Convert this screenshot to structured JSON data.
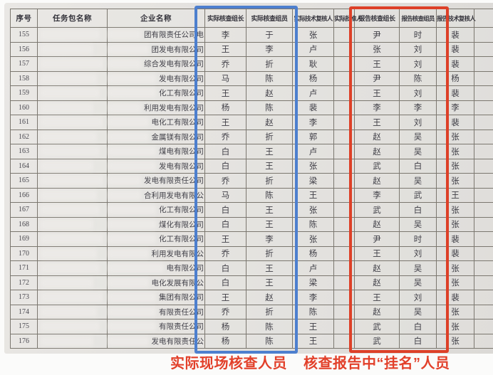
{
  "document": {
    "type": "photographed verification assignment table",
    "table": {
      "headers": [
        "序号",
        "任务包名称",
        "企业名称",
        "实际核查组长",
        "实际核查组员",
        "实际技术复核人",
        "实际批准人",
        "报告核查组长",
        "报告核查组员",
        "报告技术复核人"
      ],
      "redacted_columns": [
        "任务包名称",
        "企业名称"
      ],
      "rows": [
        {
          "num": "155",
          "company_tail": "团有限责任公司电",
          "actual_leader": "李",
          "actual_member": "于",
          "actual_reviewer": "张",
          "actual_approver": "",
          "report_leader": "尹",
          "report_member": "时",
          "report_reviewer": "裴"
        },
        {
          "num": "156",
          "company_tail": "团发电有限公司",
          "actual_leader": "王",
          "actual_member": "李",
          "actual_reviewer": "卢",
          "actual_approver": "",
          "report_leader": "张",
          "report_member": "刘",
          "report_reviewer": "裴"
        },
        {
          "num": "157",
          "company_tail": "综合发电有限公司",
          "actual_leader": "乔",
          "actual_member": "折",
          "actual_reviewer": "耿",
          "actual_approver": "",
          "report_leader": "王",
          "report_member": "刘",
          "report_reviewer": "裴"
        },
        {
          "num": "158",
          "company_tail": "发电有限公司",
          "actual_leader": "马",
          "actual_member": "陈",
          "actual_reviewer": "杨",
          "actual_approver": "",
          "report_leader": "尹",
          "report_member": "陈",
          "report_reviewer": "杨"
        },
        {
          "num": "159",
          "company_tail": "化工有限公司",
          "actual_leader": "王",
          "actual_member": "赵",
          "actual_reviewer": "卢",
          "actual_approver": "",
          "report_leader": "王",
          "report_member": "刘",
          "report_reviewer": "裴"
        },
        {
          "num": "160",
          "company_tail": "利用发电有限公司",
          "actual_leader": "杨",
          "actual_member": "陈",
          "actual_reviewer": "裴",
          "actual_approver": "",
          "report_leader": "李",
          "report_member": "李",
          "report_reviewer": "李"
        },
        {
          "num": "161",
          "company_tail": "电化工有限公司",
          "actual_leader": "王",
          "actual_member": "赵",
          "actual_reviewer": "李",
          "actual_approver": "",
          "report_leader": "王",
          "report_member": "刘",
          "report_reviewer": "裴"
        },
        {
          "num": "162",
          "company_tail": "金属镁有限公司",
          "actual_leader": "乔",
          "actual_member": "折",
          "actual_reviewer": "郭",
          "actual_approver": "",
          "report_leader": "赵",
          "report_member": "吴",
          "report_reviewer": "张"
        },
        {
          "num": "163",
          "company_tail": "煤电有限公司",
          "actual_leader": "白",
          "actual_member": "王",
          "actual_reviewer": "卢",
          "actual_approver": "",
          "report_leader": "赵",
          "report_member": "吴",
          "report_reviewer": "张"
        },
        {
          "num": "164",
          "company_tail": "发电有限公司",
          "actual_leader": "白",
          "actual_member": "王",
          "actual_reviewer": "张",
          "actual_approver": "",
          "report_leader": "武",
          "report_member": "白",
          "report_reviewer": "张"
        },
        {
          "num": "165",
          "company_tail": "发电有限责任公司",
          "actual_leader": "乔",
          "actual_member": "折",
          "actual_reviewer": "梁",
          "actual_approver": "",
          "report_leader": "赵",
          "report_member": "吴",
          "report_reviewer": "张"
        },
        {
          "num": "166",
          "company_tail": "合利用发电有限公",
          "actual_leader": "马",
          "actual_member": "陈",
          "actual_reviewer": "王",
          "actual_approver": "",
          "report_leader": "李",
          "report_member": "武",
          "report_reviewer": "王"
        },
        {
          "num": "167",
          "company_tail": "化工有限公司",
          "actual_leader": "白",
          "actual_member": "王",
          "actual_reviewer": "张",
          "actual_approver": "",
          "report_leader": "武",
          "report_member": "白",
          "report_reviewer": "张"
        },
        {
          "num": "168",
          "company_tail": "煤化有限公司",
          "actual_leader": "白",
          "actual_member": "王",
          "actual_reviewer": "陈",
          "actual_approver": "",
          "report_leader": "赵",
          "report_member": "吴",
          "report_reviewer": "张"
        },
        {
          "num": "169",
          "company_tail": "化工有限公司",
          "actual_leader": "王",
          "actual_member": "李",
          "actual_reviewer": "张",
          "actual_approver": "",
          "report_leader": "尹",
          "report_member": "时",
          "report_reviewer": "裴"
        },
        {
          "num": "170",
          "company_tail": "利用发电有限公",
          "actual_leader": "乔",
          "actual_member": "折",
          "actual_reviewer": "杨",
          "actual_approver": "",
          "report_leader": "王",
          "report_member": "刘",
          "report_reviewer": "裴"
        },
        {
          "num": "171",
          "company_tail": "电有限公司",
          "actual_leader": "白",
          "actual_member": "王",
          "actual_reviewer": "卢",
          "actual_approver": "",
          "report_leader": "赵",
          "report_member": "吴",
          "report_reviewer": "张"
        },
        {
          "num": "172",
          "company_tail": "电化发展有限公",
          "actual_leader": "白",
          "actual_member": "王",
          "actual_reviewer": "梁",
          "actual_approver": "",
          "report_leader": "赵",
          "report_member": "吴",
          "report_reviewer": "张"
        },
        {
          "num": "173",
          "company_tail": "集团有限公司",
          "actual_leader": "王",
          "actual_member": "赵",
          "actual_reviewer": "李",
          "actual_approver": "",
          "report_leader": "王",
          "report_member": "刘",
          "report_reviewer": "裴"
        },
        {
          "num": "174",
          "company_tail": "有限责任公司",
          "actual_leader": "乔",
          "actual_member": "折",
          "actual_reviewer": "陈",
          "actual_approver": "",
          "report_leader": "赵",
          "report_member": "吴",
          "report_reviewer": "张"
        },
        {
          "num": "175",
          "company_tail": "有限责任公司",
          "actual_leader": "杨",
          "actual_member": "陈",
          "actual_reviewer": "王",
          "actual_approver": "",
          "report_leader": "武",
          "report_member": "白",
          "report_reviewer": "张"
        },
        {
          "num": "176",
          "company_tail": "发电有限责任公",
          "actual_leader": "杨",
          "actual_member": "陈",
          "actual_reviewer": "王",
          "actual_approver": "",
          "report_leader": "武",
          "report_member": "白",
          "report_reviewer": "张"
        }
      ]
    },
    "annotations": {
      "blue_box_columns": [
        "实际核查组长",
        "实际核查组员"
      ],
      "red_box_columns": [
        "报告核查组长",
        "报告核查组员"
      ],
      "caption_left": "实际现场核查人员",
      "caption_right": "核查报告中“挂名”人员"
    },
    "colors": {
      "highlight_blue": "#4d7fce",
      "highlight_red": "#dd4028",
      "caption_red": "#e2402a",
      "paper": "#e3e1de",
      "ink": "#3f3e46"
    }
  }
}
